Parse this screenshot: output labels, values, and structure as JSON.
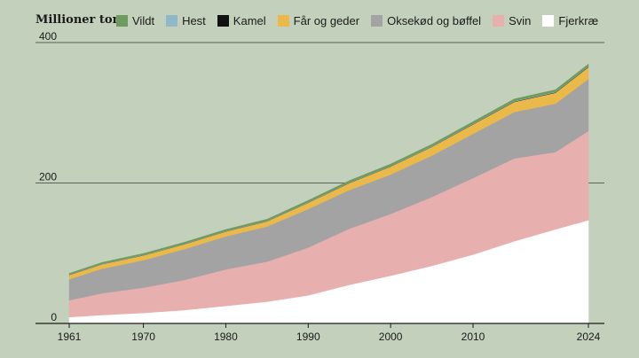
{
  "chart_data": {
    "type": "area",
    "stacked": true,
    "ylabel": "Millioner ton",
    "ylim": [
      0,
      400
    ],
    "xlim": [
      1961,
      2024
    ],
    "y_ticks": [
      0,
      200,
      400
    ],
    "x_tick_labels": [
      "1961",
      "1970",
      "1980",
      "1990",
      "2000",
      "2010",
      "2024"
    ],
    "grid": "horizontal",
    "legend_position": "top-left",
    "x": [
      1961,
      1965,
      1970,
      1975,
      1980,
      1985,
      1990,
      1995,
      2000,
      2005,
      2010,
      2015,
      2020,
      2024
    ],
    "series": [
      {
        "name": "Fjerkræ",
        "color": "#ffffff",
        "values": [
          9,
          12,
          15,
          19,
          25,
          31,
          40,
          55,
          68,
          82,
          98,
          117,
          134,
          147
        ]
      },
      {
        "name": "Svin",
        "color": "#e8afaf",
        "values": [
          24,
          31,
          36,
          43,
          52,
          57,
          68,
          80,
          88,
          98,
          109,
          118,
          110,
          127
        ]
      },
      {
        "name": "Oksekød og bøffel",
        "color": "#a3a3a3",
        "values": [
          30,
          35,
          39,
          44,
          47,
          50,
          55,
          55,
          56,
          59,
          63,
          66,
          69,
          74
        ]
      },
      {
        "name": "Får og geder",
        "color": "#eab94a",
        "values": [
          6,
          6.5,
          7,
          7,
          7,
          7.5,
          9,
          10,
          11.5,
          12.5,
          13.5,
          14.5,
          15.5,
          17
        ]
      },
      {
        "name": "Kamel",
        "color": "#111111",
        "values": [
          0.2,
          0.2,
          0.2,
          0.2,
          0.2,
          0.2,
          0.2,
          0.3,
          0.3,
          0.3,
          0.4,
          0.5,
          0.6,
          0.6
        ]
      },
      {
        "name": "Hest",
        "color": "#8fb9c8",
        "values": [
          0.6,
          0.6,
          0.6,
          0.6,
          0.6,
          0.6,
          0.7,
          0.7,
          0.7,
          0.7,
          0.8,
          0.8,
          0.8,
          0.8
        ]
      },
      {
        "name": "Vildt",
        "color": "#6e9b5e",
        "values": [
          1.5,
          1.6,
          1.8,
          1.9,
          2.0,
          2.1,
          2.3,
          2.4,
          2.5,
          2.6,
          2.7,
          2.8,
          2.9,
          3.0
        ]
      }
    ],
    "legend_order": [
      "Vildt",
      "Hest",
      "Kamel",
      "Får og geder",
      "Oksekød og bøffel",
      "Svin",
      "Fjerkræ"
    ]
  }
}
